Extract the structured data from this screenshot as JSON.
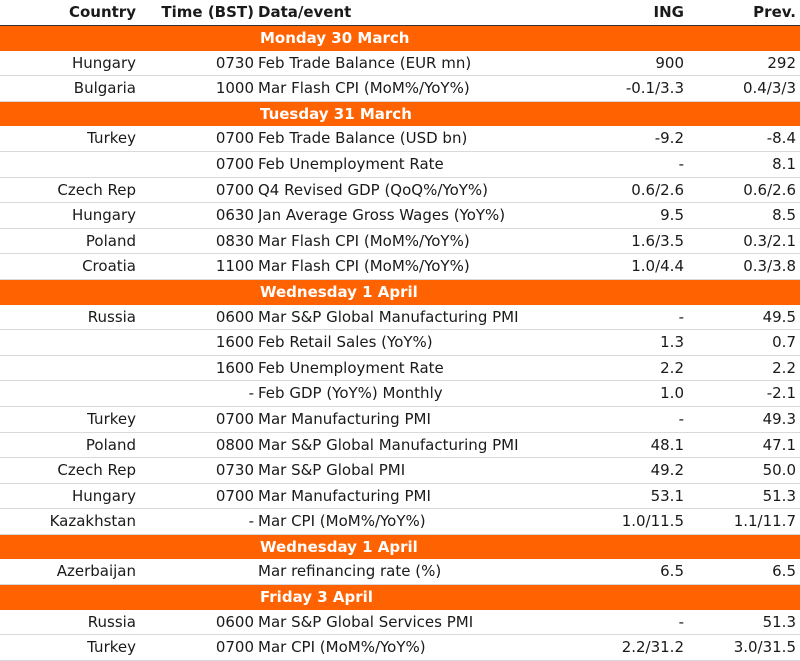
{
  "colors": {
    "accent": "#ff6200",
    "header_text": "#1a1a1a",
    "row_divider": "#d9d9d9"
  },
  "header": {
    "country": "Country",
    "time": "Time (BST)",
    "event": "Data/event",
    "ing": "ING",
    "prev": "Prev."
  },
  "sections": [
    {
      "day": "Monday 30 March",
      "rows": [
        {
          "country": "Hungary",
          "time": "0730",
          "event": "Feb Trade Balance (EUR mn)",
          "ing": "900",
          "prev": "292"
        },
        {
          "country": "Bulgaria",
          "time": "1000",
          "event": "Mar Flash CPI (MoM%/YoY%)",
          "ing": "-0.1/3.3",
          "prev": "0.4/3/3"
        }
      ]
    },
    {
      "day": "Tuesday 31 March",
      "rows": [
        {
          "country": "Turkey",
          "time": "0700",
          "event": "Feb Trade Balance (USD bn)",
          "ing": "-9.2",
          "prev": "-8.4"
        },
        {
          "country": "",
          "time": "0700",
          "event": "Feb Unemployment Rate",
          "ing": "-",
          "prev": "8.1"
        },
        {
          "country": "Czech Rep",
          "time": "0700",
          "event": "Q4 Revised GDP (QoQ%/YoY%)",
          "ing": "0.6/2.6",
          "prev": "0.6/2.6"
        },
        {
          "country": "Hungary",
          "time": "0630",
          "event": "Jan Average Gross Wages (YoY%)",
          "ing": "9.5",
          "prev": "8.5"
        },
        {
          "country": "Poland",
          "time": "0830",
          "event": "Mar Flash CPI (MoM%/YoY%)",
          "ing": "1.6/3.5",
          "prev": "0.3/2.1"
        },
        {
          "country": "Croatia",
          "time": "1100",
          "event": "Mar Flash CPI (MoM%/YoY%)",
          "ing": "1.0/4.4",
          "prev": "0.3/3.8"
        }
      ]
    },
    {
      "day": "Wednesday 1 April",
      "rows": [
        {
          "country": "Russia",
          "time": "0600",
          "event": "Mar S&P Global Manufacturing PMI",
          "ing": "-",
          "prev": "49.5"
        },
        {
          "country": "",
          "time": "1600",
          "event": "Feb Retail Sales (YoY%)",
          "ing": "1.3",
          "prev": "0.7"
        },
        {
          "country": "",
          "time": "1600",
          "event": "Feb Unemployment Rate",
          "ing": "2.2",
          "prev": "2.2"
        },
        {
          "country": "",
          "time": "-",
          "event": "Feb GDP (YoY%) Monthly",
          "ing": "1.0",
          "prev": "-2.1"
        },
        {
          "country": "Turkey",
          "time": "0700",
          "event": "Mar Manufacturing PMI",
          "ing": "-",
          "prev": "49.3"
        },
        {
          "country": "Poland",
          "time": "0800",
          "event": "Mar S&P Global Manufacturing PMI",
          "ing": "48.1",
          "prev": "47.1"
        },
        {
          "country": "Czech Rep",
          "time": "0730",
          "event": "Mar S&P Global PMI",
          "ing": "49.2",
          "prev": "50.0"
        },
        {
          "country": "Hungary",
          "time": "0700",
          "event": "Mar Manufacturing PMI",
          "ing": "53.1",
          "prev": "51.3"
        },
        {
          "country": "Kazakhstan",
          "time": "-",
          "event": "Mar CPI (MoM%/YoY%)",
          "ing": "1.0/11.5",
          "prev": "1.1/11.7"
        }
      ]
    },
    {
      "day": "Wednesday 1 April",
      "rows": [
        {
          "country": "Azerbaijan",
          "time": "",
          "event": "Mar refinancing rate (%)",
          "ing": "6.5",
          "prev": "6.5"
        }
      ]
    },
    {
      "day": "Friday 3 April",
      "rows": [
        {
          "country": "Russia",
          "time": "0600",
          "event": "Mar S&P Global Services PMI",
          "ing": "-",
          "prev": "51.3"
        },
        {
          "country": "Turkey",
          "time": "0700",
          "event": "Mar CPI (MoM%/YoY%)",
          "ing": "2.2/31.2",
          "prev": "3.0/31.5"
        }
      ]
    }
  ]
}
